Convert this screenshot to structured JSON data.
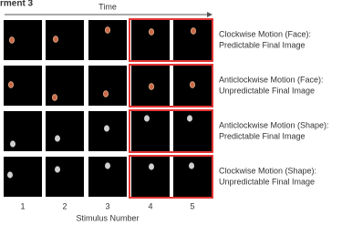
{
  "header": {
    "title": "rment 3",
    "time_label": "Time"
  },
  "rows": [
    {
      "line1": "Clockwise Motion (Face):",
      "line2": "Predictable Final Image"
    },
    {
      "line1": "Anticlockwise Motion (Face):",
      "line2": "Unpredictable Final Image"
    },
    {
      "line1": "Anticlockwise Motion (Shape):",
      "line2": "Predictable Final Image"
    },
    {
      "line1": "Clockwise Motion (Shape):",
      "line2": "Unpredictable Final Image"
    }
  ],
  "columns": [
    1,
    2,
    3,
    4,
    5
  ],
  "x_axis_label": "Stimulus Number"
}
